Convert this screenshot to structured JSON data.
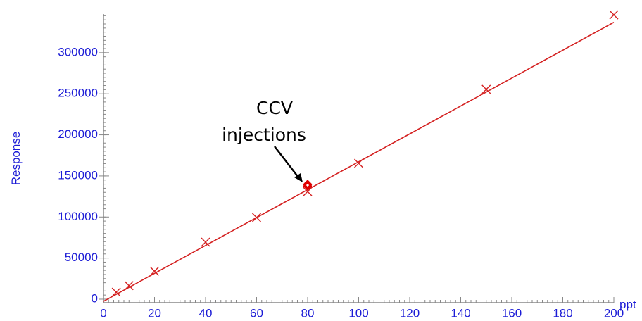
{
  "chart_data": {
    "type": "scatter",
    "x_label": "ppt",
    "y_label": "Response",
    "annotation": [
      "CCV",
      "injections"
    ],
    "xlim": [
      0,
      200
    ],
    "ylim": [
      -4300,
      347000
    ],
    "xticks": [
      0,
      20,
      40,
      60,
      80,
      100,
      120,
      140,
      160,
      180,
      200
    ],
    "yticks": [
      0,
      50000,
      100000,
      150000,
      200000,
      250000,
      300000
    ],
    "xminor": 2,
    "yminor": 5000,
    "series": [
      {
        "type": "line",
        "color": "#d42020",
        "x": [
          0,
          200
        ],
        "values": [
          -2600,
          337000
        ]
      },
      {
        "type": "scatter",
        "marker": "x",
        "color": "#d42020",
        "x": [
          5,
          10,
          20,
          40,
          60,
          80,
          100,
          150,
          200
        ],
        "values": [
          8500,
          16500,
          34000,
          69400,
          99400,
          131000,
          165400,
          255400,
          346000
        ]
      },
      {
        "type": "scatter",
        "marker": "diamond",
        "color": "#e00000",
        "x": [
          80,
          80,
          80
        ],
        "values": [
          137500,
          138900,
          140000
        ]
      }
    ]
  }
}
